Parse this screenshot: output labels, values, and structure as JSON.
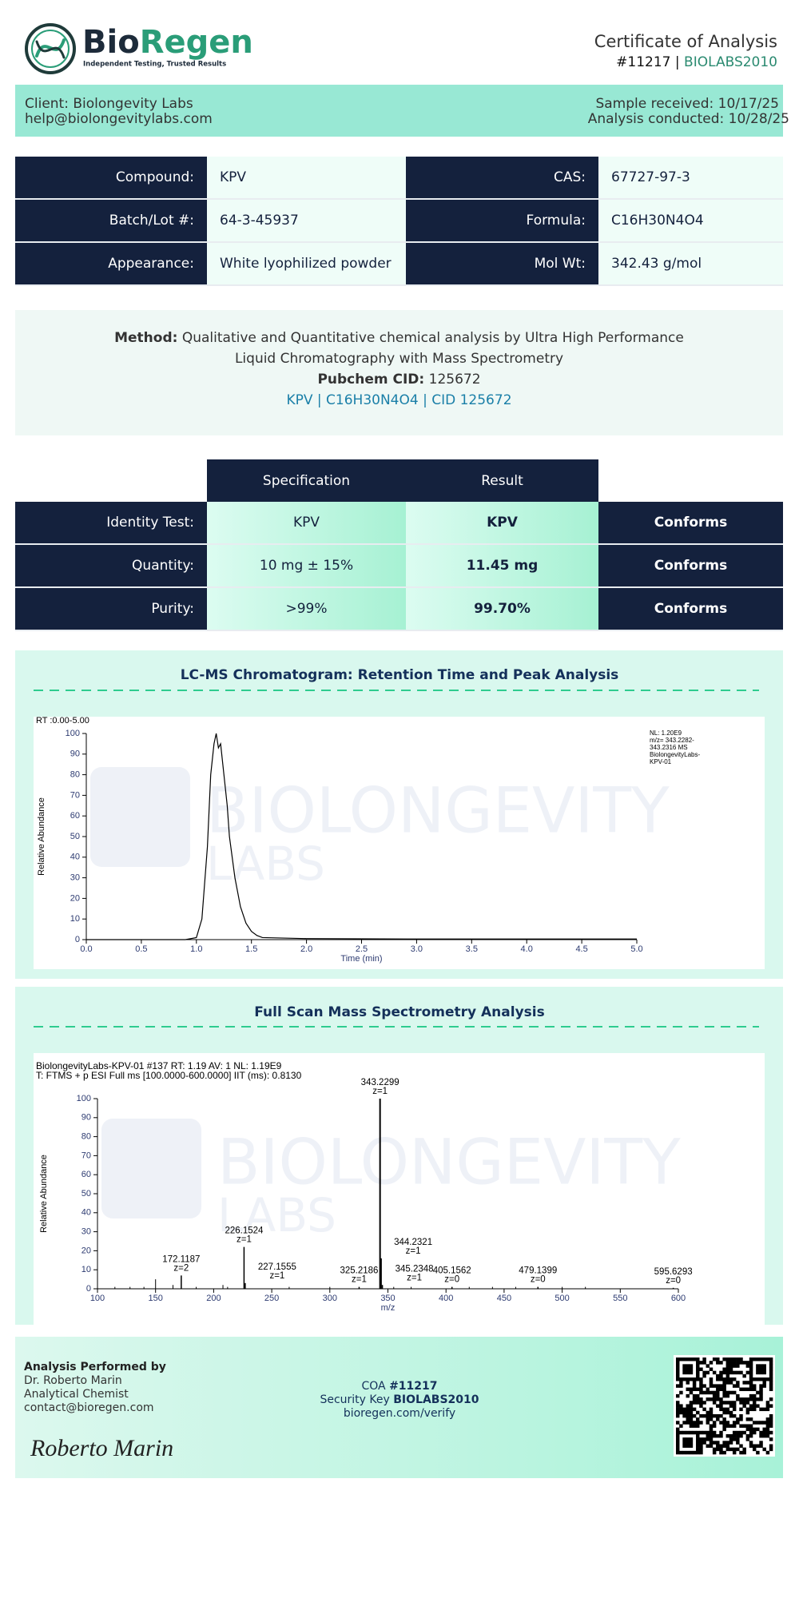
{
  "header": {
    "brand_1": "Bio",
    "brand_2": "Regen",
    "tagline": "Independent Testing, Trusted Results",
    "doc_title": "Certificate of Analysis",
    "number": "#11217",
    "separator": "|",
    "code": "BIOLABS2010"
  },
  "client_bar": {
    "client": "Client: Biolongevity Labs",
    "email": "help@biolongevitylabs.com",
    "sample_received": "Sample received: 10/17/25",
    "analysis_conducted": "Analysis conducted: 10/28/25"
  },
  "info_table": {
    "rows": [
      [
        "Compound:",
        "KPV",
        "CAS:",
        "67727-97-3"
      ],
      [
        "Batch/Lot #:",
        "64-3-45937",
        "Formula:",
        "C16H30N4O4"
      ],
      [
        "Appearance:",
        "White lyophilized powder",
        "Mol Wt:",
        "342.43 g/mol"
      ]
    ]
  },
  "method": {
    "label": "Method:",
    "text": "Qualitative and Quantitative chemical analysis by Ultra High Performance Liquid Chromatography with Mass Spectrometry",
    "pubchem_label": "Pubchem CID:",
    "pubchem_value": "125672",
    "link": "KPV | C16H30N4O4 | CID 125672"
  },
  "results": {
    "header": [
      "Specification",
      "Result"
    ],
    "rows": [
      [
        "Identity Test:",
        "KPV",
        "KPV",
        "Conforms"
      ],
      [
        "Quantity:",
        "10 mg ± 15%",
        "11.45 mg",
        "Conforms"
      ],
      [
        "Purity:",
        ">99%",
        "99.70%",
        "Conforms"
      ]
    ]
  },
  "chromatogram": {
    "title": "LC-MS Chromatogram: Retention Time and Peak Analysis",
    "chart": {
      "type": "line",
      "range_label": "RT :0.00-5.00",
      "x_label": "Time (min)",
      "y_label": "Relative Abundance",
      "annotation": [
        "NL: 1.20E9",
        "m/z= 343.2282-",
        "343.2316 MS",
        "BiolongevityLabs-",
        "KPV-01"
      ],
      "watermark": [
        "BIOLONGEVITY",
        "LABS"
      ],
      "color": "#000000",
      "xlim": [
        0,
        5
      ],
      "ylim": [
        0,
        100
      ],
      "xticks": [
        {
          "value": 0,
          "label": "0.0"
        },
        {
          "value": 0.5,
          "label": "0.5"
        },
        {
          "value": 1,
          "label": "1.0"
        },
        {
          "value": 1.5,
          "label": "1.5"
        },
        {
          "value": 2,
          "label": "2.0"
        },
        {
          "value": 2.5,
          "label": "2.5"
        },
        {
          "value": 3,
          "label": "3.0"
        },
        {
          "value": 3.5,
          "label": "3.5"
        },
        {
          "value": 4,
          "label": "4.0"
        },
        {
          "value": 4.5,
          "label": "4.5"
        },
        {
          "value": 5,
          "label": "5.0"
        }
      ],
      "yticks": [
        0,
        10,
        20,
        30,
        40,
        50,
        60,
        70,
        80,
        90,
        100
      ],
      "x": [
        0,
        0.9,
        1.0,
        1.05,
        1.1,
        1.13,
        1.16,
        1.18,
        1.2,
        1.22,
        1.25,
        1.28,
        1.3,
        1.35,
        1.4,
        1.45,
        1.5,
        1.55,
        1.6,
        2.0,
        3.0,
        4.0,
        5.0
      ],
      "values": [
        0,
        0,
        1,
        10,
        45,
        80,
        95,
        100,
        93,
        95,
        80,
        65,
        50,
        30,
        16,
        8,
        4,
        2,
        1,
        0.5,
        0.3,
        0.3,
        0.3
      ]
    }
  },
  "mass_spec": {
    "title": "Full Scan Mass Spectrometry Analysis",
    "chart": {
      "type": "stem",
      "header_lines": [
        "BiolongevityLabs-KPV-01 #137 RT: 1.19 AV: 1 NL: 1.19E9",
        "T: FTMS + p ESI Full ms [100.0000-600.0000] IIT (ms): 0.8130"
      ],
      "x_label": "m/z",
      "y_label": "Relative Abundance",
      "watermark": [
        "BIOLONGEVITY",
        "LABS"
      ],
      "color": "#000000",
      "xlim": [
        100,
        600
      ],
      "ylim": [
        0,
        100
      ],
      "xticks": [
        100,
        150,
        200,
        250,
        300,
        350,
        400,
        450,
        500,
        550,
        600
      ],
      "yticks": [
        0,
        10,
        20,
        30,
        40,
        50,
        60,
        70,
        80,
        90,
        100
      ],
      "peaks": [
        {
          "x": 172.1187,
          "value": 7,
          "charge": "z=2"
        },
        {
          "x": 226.1524,
          "value": 22,
          "charge": "z=1"
        },
        {
          "x": 227.1555,
          "value": 3,
          "charge": "z=1"
        },
        {
          "x": 325.2186,
          "value": 1,
          "charge": "z=1"
        },
        {
          "x": 343.2299,
          "value": 100,
          "charge": "z=1"
        },
        {
          "x": 344.2321,
          "value": 16,
          "charge": "z=1"
        },
        {
          "x": 345.2348,
          "value": 2,
          "charge": "z=1"
        },
        {
          "x": 405.1562,
          "value": 1,
          "charge": "z=0"
        },
        {
          "x": 479.1399,
          "value": 1,
          "charge": "z=0"
        },
        {
          "x": 595.6293,
          "value": 0.5,
          "charge": "z=0"
        }
      ],
      "minor_peaks": {
        "x": [
          115,
          128,
          140,
          150,
          165,
          185,
          208,
          212,
          265,
          300,
          355,
          370,
          420,
          440,
          460,
          500,
          520
        ],
        "values": [
          1,
          1,
          1,
          5,
          2,
          1,
          2,
          1,
          1,
          1,
          1,
          1,
          1,
          1,
          1,
          1,
          1
        ]
      }
    }
  },
  "footer": {
    "performed_by": "Analysis Performed by",
    "analyst": "Dr. Roberto Marin",
    "role": "Analytical Chemist",
    "contact": "contact@bioregen.com",
    "signature": "Roberto Marin",
    "coa_label": "COA",
    "coa_number": "#11217",
    "key_label": "Security Key",
    "key_value": "BIOLABS2010",
    "verify_url": "bioregen.com/verify"
  }
}
